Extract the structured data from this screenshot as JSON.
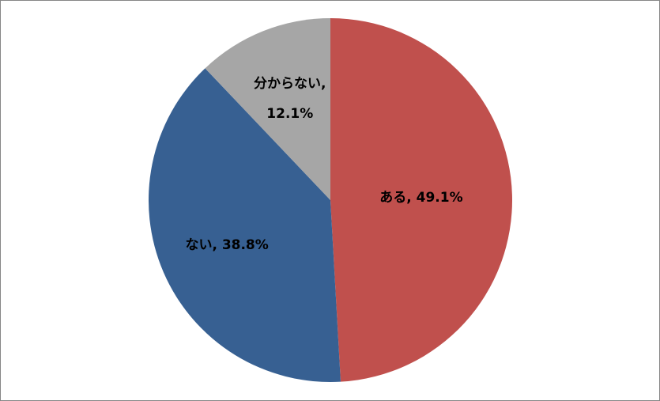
{
  "chart_data": {
    "type": "pie",
    "categories": [
      "ある",
      "ない",
      "分からない"
    ],
    "values": [
      49.1,
      38.8,
      12.1
    ],
    "value_labels": [
      "ある, 49.1%",
      "ない, 38.8%",
      "分からない, 12.1%"
    ],
    "colors": [
      "#c0504d",
      "#376092",
      "#a6a6a6"
    ]
  }
}
